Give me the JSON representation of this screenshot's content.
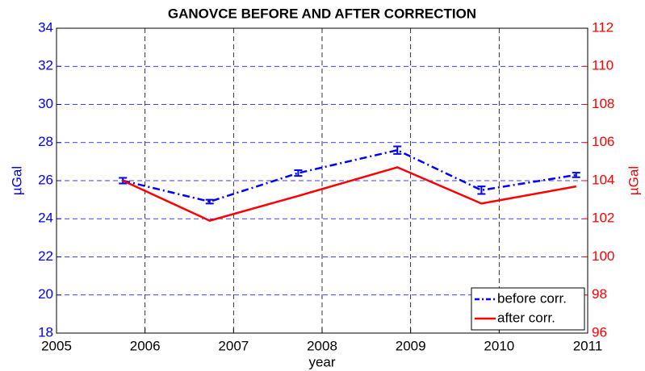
{
  "chart_data": {
    "type": "line",
    "title": "GANOVCE BEFORE AND AFTER CORRECTION",
    "xlabel": "year",
    "ylabel": "µGal",
    "y2label": "µGal",
    "x": [
      2005.75,
      2006.73,
      2007.73,
      2008.85,
      2009.8,
      2010.87
    ],
    "series": [
      {
        "name": "before corr.",
        "color": "#0000ff",
        "axis": "y",
        "values": [
          26.0,
          24.9,
          26.4,
          27.6,
          25.5,
          26.3
        ],
        "errors": [
          0.15,
          0.1,
          0.15,
          0.2,
          0.2,
          0.12
        ]
      },
      {
        "name": "after corr.",
        "color": "#ff0000",
        "axis": "y2",
        "values": [
          104.0,
          101.9,
          103.2,
          104.7,
          102.8,
          103.7
        ]
      }
    ],
    "xlim": [
      2005,
      2011
    ],
    "xticks": [
      2005,
      2006,
      2007,
      2008,
      2009,
      2010,
      2011
    ],
    "ylim": [
      18,
      34
    ],
    "yticks": [
      18,
      20,
      22,
      24,
      26,
      28,
      30,
      32,
      34
    ],
    "y2lim": [
      96,
      112
    ],
    "y2ticks": [
      96,
      98,
      100,
      102,
      104,
      106,
      108,
      110,
      112
    ],
    "grid": true,
    "legend": "lower right"
  }
}
